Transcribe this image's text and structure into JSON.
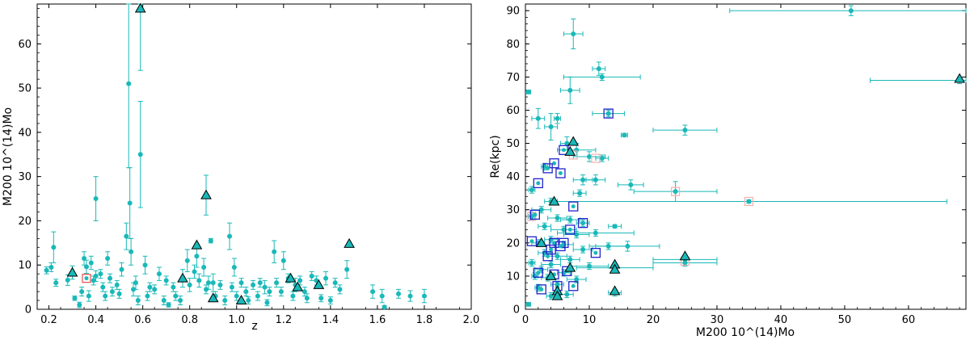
{
  "colors": {
    "point": "#1ab8b8",
    "triangle_edge": "#000000",
    "square_red": "#e05050",
    "square_blue": "#2222cc",
    "square_pink": "#f4b0b0"
  },
  "chart_data": [
    {
      "type": "scatter",
      "title": "",
      "xlabel": "z",
      "ylabel": "M200 10^(14)Mo",
      "xlim": [
        0.15,
        2.0
      ],
      "ylim": [
        0,
        69
      ],
      "xticks": [
        "0.2",
        "0.4",
        "0.6",
        "0.8",
        "1.0",
        "1.2",
        "1.4",
        "1.6",
        "1.8",
        "2.0"
      ],
      "xtick_values": [
        0.2,
        0.4,
        0.6,
        0.8,
        1.0,
        1.2,
        1.4,
        1.6,
        1.8,
        2.0
      ],
      "yticks": [
        "0",
        "10",
        "20",
        "30",
        "40",
        "50",
        "60"
      ],
      "ytick_values": [
        0,
        10,
        20,
        30,
        40,
        50,
        60
      ],
      "points": [
        {
          "x": 0.19,
          "y": 8.8,
          "e": 0.8
        },
        {
          "x": 0.21,
          "y": 9.5,
          "e": 1.0
        },
        {
          "x": 0.22,
          "y": 14,
          "e": 3.5
        },
        {
          "x": 0.23,
          "y": 6.0,
          "e": 0.8
        },
        {
          "x": 0.28,
          "y": 6.6,
          "e": 1.2
        },
        {
          "x": 0.3,
          "y": 8.3,
          "e": 1.5
        },
        {
          "x": 0.31,
          "y": 2.5,
          "e": 0.5
        },
        {
          "x": 0.33,
          "y": 1.0,
          "e": 0.6
        },
        {
          "x": 0.34,
          "y": 4.0,
          "e": 1.0
        },
        {
          "x": 0.35,
          "y": 11.5,
          "e": 1.5
        },
        {
          "x": 0.36,
          "y": 9.6,
          "e": 1.5
        },
        {
          "x": 0.37,
          "y": 3.0,
          "e": 1.2
        },
        {
          "x": 0.38,
          "y": 10.5,
          "e": 1.5
        },
        {
          "x": 0.39,
          "y": 6.5,
          "e": 1.0
        },
        {
          "x": 0.4,
          "y": 25,
          "e": 5
        },
        {
          "x": 0.4,
          "y": 7.5,
          "e": 1.2
        },
        {
          "x": 0.42,
          "y": 8.0,
          "e": 1.0
        },
        {
          "x": 0.43,
          "y": 5.0,
          "e": 1.0
        },
        {
          "x": 0.44,
          "y": 3.0,
          "e": 1.0
        },
        {
          "x": 0.45,
          "y": 11.5,
          "e": 1.5
        },
        {
          "x": 0.46,
          "y": 7.0,
          "e": 1.0
        },
        {
          "x": 0.47,
          "y": 4.0,
          "e": 1.0
        },
        {
          "x": 0.49,
          "y": 5.5,
          "e": 1.0
        },
        {
          "x": 0.5,
          "y": 3.5,
          "e": 1.0
        },
        {
          "x": 0.51,
          "y": 9.0,
          "e": 1.5
        },
        {
          "x": 0.53,
          "y": 16.5,
          "e": 3
        },
        {
          "x": 0.54,
          "y": 51,
          "e": 19
        },
        {
          "x": 0.545,
          "y": 24,
          "e": 8
        },
        {
          "x": 0.55,
          "y": 13,
          "e": 3
        },
        {
          "x": 0.56,
          "y": 4.5,
          "e": 1.5
        },
        {
          "x": 0.57,
          "y": 6.0,
          "e": 1.5
        },
        {
          "x": 0.58,
          "y": 2.0,
          "e": 1.0
        },
        {
          "x": 0.59,
          "y": 35,
          "e": 12
        },
        {
          "x": 0.61,
          "y": 10,
          "e": 2
        },
        {
          "x": 0.62,
          "y": 3.0,
          "e": 1.0
        },
        {
          "x": 0.63,
          "y": 5.0,
          "e": 1.0
        },
        {
          "x": 0.65,
          "y": 4.5,
          "e": 1.0
        },
        {
          "x": 0.67,
          "y": 8.0,
          "e": 1.5
        },
        {
          "x": 0.69,
          "y": 2.0,
          "e": 1.0
        },
        {
          "x": 0.7,
          "y": 6.5,
          "e": 1.0
        },
        {
          "x": 0.71,
          "y": 1.0,
          "e": 0.5
        },
        {
          "x": 0.73,
          "y": 5.0,
          "e": 1.0
        },
        {
          "x": 0.74,
          "y": 3.0,
          "e": 1.0
        },
        {
          "x": 0.76,
          "y": 2.0,
          "e": 1.0
        },
        {
          "x": 0.77,
          "y": 7.0,
          "e": 2
        },
        {
          "x": 0.79,
          "y": 11,
          "e": 2.5
        },
        {
          "x": 0.8,
          "y": 5.5,
          "e": 1.5
        },
        {
          "x": 0.82,
          "y": 8.5,
          "e": 1.5
        },
        {
          "x": 0.83,
          "y": 12,
          "e": 2.5
        },
        {
          "x": 0.84,
          "y": 6.5,
          "e": 1.5
        },
        {
          "x": 0.86,
          "y": 9.5,
          "e": 2
        },
        {
          "x": 0.87,
          "y": 4.5,
          "e": 1.0
        },
        {
          "x": 0.88,
          "y": 6.0,
          "e": 1.5
        },
        {
          "x": 0.89,
          "y": 15.5,
          "e": 0.5
        },
        {
          "x": 0.9,
          "y": 6.0,
          "e": 2
        },
        {
          "x": 0.91,
          "y": 3.0,
          "e": 1.0
        },
        {
          "x": 0.93,
          "y": 5.5,
          "e": 1.0
        },
        {
          "x": 0.95,
          "y": 2.0,
          "e": 1.0
        },
        {
          "x": 0.97,
          "y": 16.5,
          "e": 3
        },
        {
          "x": 0.98,
          "y": 5.0,
          "e": 1.0
        },
        {
          "x": 0.99,
          "y": 9.5,
          "e": 2
        },
        {
          "x": 1.0,
          "y": 3.0,
          "e": 1.0
        },
        {
          "x": 1.02,
          "y": 6.0,
          "e": 1.0
        },
        {
          "x": 1.04,
          "y": 4.0,
          "e": 1.0
        },
        {
          "x": 1.05,
          "y": 2.0,
          "e": 0.8
        },
        {
          "x": 1.07,
          "y": 5.5,
          "e": 1.0
        },
        {
          "x": 1.09,
          "y": 3.0,
          "e": 1.0
        },
        {
          "x": 1.1,
          "y": 6.0,
          "e": 1.0
        },
        {
          "x": 1.12,
          "y": 5.0,
          "e": 1.5
        },
        {
          "x": 1.13,
          "y": 1.5,
          "e": 0.7
        },
        {
          "x": 1.14,
          "y": 4.0,
          "e": 1.0
        },
        {
          "x": 1.16,
          "y": 13,
          "e": 2.5
        },
        {
          "x": 1.17,
          "y": 6.0,
          "e": 1.0
        },
        {
          "x": 1.19,
          "y": 4.0,
          "e": 1.0
        },
        {
          "x": 1.2,
          "y": 11,
          "e": 2
        },
        {
          "x": 1.22,
          "y": 7.0,
          "e": 1.0
        },
        {
          "x": 1.24,
          "y": 3.0,
          "e": 1.0
        },
        {
          "x": 1.25,
          "y": 5.5,
          "e": 1.5
        },
        {
          "x": 1.27,
          "y": 6.5,
          "e": 1.0
        },
        {
          "x": 1.29,
          "y": 4.0,
          "e": 1.0
        },
        {
          "x": 1.3,
          "y": 2.5,
          "e": 1.0
        },
        {
          "x": 1.32,
          "y": 7.5,
          "e": 1.0
        },
        {
          "x": 1.34,
          "y": 6.5,
          "e": 1.0
        },
        {
          "x": 1.36,
          "y": 2.5,
          "e": 0.8
        },
        {
          "x": 1.38,
          "y": 7.0,
          "e": 1.5
        },
        {
          "x": 1.4,
          "y": 2.0,
          "e": 0.8
        },
        {
          "x": 1.42,
          "y": 6.0,
          "e": 1.0
        },
        {
          "x": 1.44,
          "y": 4.5,
          "e": 1.0
        },
        {
          "x": 1.47,
          "y": 9.0,
          "e": 2
        },
        {
          "x": 1.58,
          "y": 4.0,
          "e": 1.5
        },
        {
          "x": 1.62,
          "y": 3.0,
          "e": 1.5
        },
        {
          "x": 1.63,
          "y": 0.5,
          "e": 0.3
        },
        {
          "x": 1.69,
          "y": 3.5,
          "e": 1.0
        },
        {
          "x": 1.74,
          "y": 3.0,
          "e": 1.2
        },
        {
          "x": 1.8,
          "y": 3.0,
          "e": 1.5
        }
      ],
      "triangles": [
        {
          "x": 0.3,
          "y": 8.3
        },
        {
          "x": 0.59,
          "y": 68,
          "e": 14
        },
        {
          "x": 0.77,
          "y": 7.0
        },
        {
          "x": 0.83,
          "y": 14.5
        },
        {
          "x": 0.87,
          "y": 25.8,
          "e": 4.5
        },
        {
          "x": 0.9,
          "y": 2.5
        },
        {
          "x": 1.02,
          "y": 2.0
        },
        {
          "x": 1.23,
          "y": 7.0
        },
        {
          "x": 1.26,
          "y": 5.0
        },
        {
          "x": 1.35,
          "y": 5.5
        },
        {
          "x": 1.48,
          "y": 14.8
        }
      ],
      "squares_red": [
        {
          "x": 0.36,
          "y": 7.0
        }
      ],
      "markers": {
        "point": "filled circle",
        "highlight": "open triangle",
        "box": "open square"
      }
    },
    {
      "type": "scatter",
      "title": "",
      "xlabel": "M200 10^(14)Mo",
      "ylabel": "Re(kpc)",
      "xlim": [
        0,
        69
      ],
      "ylim": [
        0,
        92
      ],
      "xticks": [
        "0",
        "10",
        "20",
        "30",
        "40",
        "50",
        "60"
      ],
      "xtick_values": [
        0,
        10,
        20,
        30,
        40,
        50,
        60
      ],
      "yticks": [
        "0",
        "10",
        "20",
        "30",
        "40",
        "50",
        "60",
        "70",
        "80",
        "90"
      ],
      "ytick_values": [
        0,
        10,
        20,
        30,
        40,
        50,
        60,
        70,
        80,
        90
      ],
      "points": [
        {
          "x": 51,
          "y": 90,
          "ex": 19,
          "ey": 1.5
        },
        {
          "x": 68,
          "y": 69,
          "ex": 14,
          "ey": 1
        },
        {
          "x": 35,
          "y": 32.5,
          "ex": 31,
          "ey": 0.5
        },
        {
          "x": 25,
          "y": 54,
          "ex": 5,
          "ey": 1.5
        },
        {
          "x": 25,
          "y": 15,
          "ex": 5,
          "ey": 1
        },
        {
          "x": 25,
          "y": 14,
          "ex": 5,
          "ey": 1
        },
        {
          "x": 23.5,
          "y": 35.5,
          "ex": 6.5,
          "ey": 3
        },
        {
          "x": 16.5,
          "y": 37.5,
          "ex": 2,
          "ey": 1.5
        },
        {
          "x": 15.5,
          "y": 52.5,
          "ex": 0.5,
          "ey": 0.5
        },
        {
          "x": 14,
          "y": 25,
          "ex": 1,
          "ey": 0.5
        },
        {
          "x": 14,
          "y": 12.5,
          "ex": 6,
          "ey": 1
        },
        {
          "x": 14,
          "y": 5.0,
          "ex": 1,
          "ey": 1
        },
        {
          "x": 13,
          "y": 59,
          "ex": 2.5,
          "ey": 1
        },
        {
          "x": 16,
          "y": 19,
          "ex": 5,
          "ey": 1.5
        },
        {
          "x": 11.5,
          "y": 72.5,
          "ex": 1,
          "ey": 2
        },
        {
          "x": 12,
          "y": 70,
          "ex": 6,
          "ey": 1
        },
        {
          "x": 7.5,
          "y": 83,
          "ex": 1.5,
          "ey": 4.5
        },
        {
          "x": 7,
          "y": 66,
          "ex": 1.5,
          "ey": 4
        },
        {
          "x": 5,
          "y": 57.5,
          "ex": 0.5,
          "ey": 1.5
        },
        {
          "x": 2,
          "y": 57.5,
          "ex": 1,
          "ey": 3
        },
        {
          "x": 4,
          "y": 55,
          "ex": 1,
          "ey": 4
        },
        {
          "x": 6.5,
          "y": 50,
          "ex": 1,
          "ey": 2
        },
        {
          "x": 8,
          "y": 48,
          "ex": 3,
          "ey": 2
        },
        {
          "x": 10,
          "y": 46,
          "ex": 2.5,
          "ey": 1.5
        },
        {
          "x": 12,
          "y": 45.5,
          "ex": 1,
          "ey": 1
        },
        {
          "x": 3,
          "y": 43,
          "ex": 0.5,
          "ey": 1
        },
        {
          "x": 9,
          "y": 39,
          "ex": 1.5,
          "ey": 1.5
        },
        {
          "x": 11,
          "y": 39,
          "ex": 1.5,
          "ey": 1.5
        },
        {
          "x": 8.5,
          "y": 35,
          "ex": 1,
          "ey": 1
        },
        {
          "x": 1,
          "y": 36,
          "ex": 0.5,
          "ey": 1
        },
        {
          "x": 0.5,
          "y": 65.5,
          "ex": 0.3,
          "ey": 0.5
        },
        {
          "x": 4,
          "y": 32.5,
          "ex": 1,
          "ey": 1
        },
        {
          "x": 2.5,
          "y": 30,
          "ex": 1.5,
          "ey": 1
        },
        {
          "x": 1,
          "y": 28,
          "ex": 0.5,
          "ey": 1
        },
        {
          "x": 5,
          "y": 27.5,
          "ex": 1.5,
          "ey": 1
        },
        {
          "x": 7,
          "y": 27,
          "ex": 1.5,
          "ey": 1
        },
        {
          "x": 9,
          "y": 26,
          "ex": 1,
          "ey": 1
        },
        {
          "x": 3,
          "y": 25,
          "ex": 1,
          "ey": 1
        },
        {
          "x": 6,
          "y": 24,
          "ex": 2,
          "ey": 1
        },
        {
          "x": 11,
          "y": 23,
          "ex": 6,
          "ey": 1
        },
        {
          "x": 8,
          "y": 22.5,
          "ex": 2,
          "ey": 1
        },
        {
          "x": 4,
          "y": 21,
          "ex": 1,
          "ey": 1
        },
        {
          "x": 2,
          "y": 20,
          "ex": 1,
          "ey": 1
        },
        {
          "x": 6,
          "y": 19.5,
          "ex": 1.5,
          "ey": 1
        },
        {
          "x": 13,
          "y": 19,
          "ex": 3,
          "ey": 1
        },
        {
          "x": 9,
          "y": 18,
          "ex": 1.5,
          "ey": 1
        },
        {
          "x": 3,
          "y": 17,
          "ex": 1,
          "ey": 1
        },
        {
          "x": 5,
          "y": 16,
          "ex": 1.5,
          "ey": 1
        },
        {
          "x": 7,
          "y": 15,
          "ex": 1.5,
          "ey": 1
        },
        {
          "x": 1,
          "y": 14,
          "ex": 0.5,
          "ey": 1
        },
        {
          "x": 4,
          "y": 13.5,
          "ex": 1.5,
          "ey": 1
        },
        {
          "x": 10,
          "y": 13,
          "ex": 3,
          "ey": 1
        },
        {
          "x": 2.5,
          "y": 12,
          "ex": 1,
          "ey": 1
        },
        {
          "x": 6,
          "y": 11,
          "ex": 1,
          "ey": 1
        },
        {
          "x": 3.5,
          "y": 9.5,
          "ex": 1,
          "ey": 1
        },
        {
          "x": 8,
          "y": 9,
          "ex": 1.5,
          "ey": 1
        },
        {
          "x": 5,
          "y": 7.5,
          "ex": 1,
          "ey": 1
        },
        {
          "x": 2,
          "y": 6.5,
          "ex": 0.5,
          "ey": 1
        },
        {
          "x": 4,
          "y": 4,
          "ex": 0.7,
          "ey": 1
        },
        {
          "x": 0.5,
          "y": 1.5,
          "ex": 0.3,
          "ey": 0.5
        },
        {
          "x": 1.5,
          "y": 10,
          "ex": 0.5,
          "ey": 1
        },
        {
          "x": 6.5,
          "y": 4.5,
          "ex": 1,
          "ey": 1
        }
      ],
      "triangles": [
        {
          "x": 68,
          "y": 69.5
        },
        {
          "x": 7.5,
          "y": 50.5
        },
        {
          "x": 7,
          "y": 47.5
        },
        {
          "x": 4.5,
          "y": 32.5
        },
        {
          "x": 2.5,
          "y": 20
        },
        {
          "x": 14,
          "y": 13.5
        },
        {
          "x": 14,
          "y": 12
        },
        {
          "x": 7,
          "y": 12.5
        },
        {
          "x": 4,
          "y": 10
        },
        {
          "x": 14,
          "y": 5.5
        },
        {
          "x": 5,
          "y": 5.5
        },
        {
          "x": 5,
          "y": 4.0
        },
        {
          "x": 25,
          "y": 16
        }
      ],
      "squares_blue": [
        {
          "x": 13,
          "y": 59
        },
        {
          "x": 6,
          "y": 48
        },
        {
          "x": 4.5,
          "y": 44
        },
        {
          "x": 3.5,
          "y": 42.5
        },
        {
          "x": 5.5,
          "y": 41
        },
        {
          "x": 2,
          "y": 38
        },
        {
          "x": 7.5,
          "y": 31
        },
        {
          "x": 1.5,
          "y": 28.5
        },
        {
          "x": 9,
          "y": 26
        },
        {
          "x": 7,
          "y": 24
        },
        {
          "x": 4.5,
          "y": 20
        },
        {
          "x": 1,
          "y": 20.5
        },
        {
          "x": 6,
          "y": 20
        },
        {
          "x": 5.5,
          "y": 19
        },
        {
          "x": 3.5,
          "y": 16
        },
        {
          "x": 11,
          "y": 17
        },
        {
          "x": 2,
          "y": 11
        },
        {
          "x": 4.5,
          "y": 10.5
        },
        {
          "x": 6.5,
          "y": 11.5
        },
        {
          "x": 2.5,
          "y": 6
        },
        {
          "x": 5,
          "y": 7
        },
        {
          "x": 7.5,
          "y": 7
        },
        {
          "x": 4,
          "y": 18
        }
      ],
      "squares_pink": [
        {
          "x": 35,
          "y": 32.5
        },
        {
          "x": 23.5,
          "y": 35.5
        },
        {
          "x": 25,
          "y": 14.5
        },
        {
          "x": 11,
          "y": 45.5
        },
        {
          "x": 1,
          "y": 28
        },
        {
          "x": 7.5,
          "y": 46.5
        }
      ],
      "markers": {
        "point": "filled circle",
        "highlight": "open triangle",
        "box": "open square"
      }
    }
  ]
}
